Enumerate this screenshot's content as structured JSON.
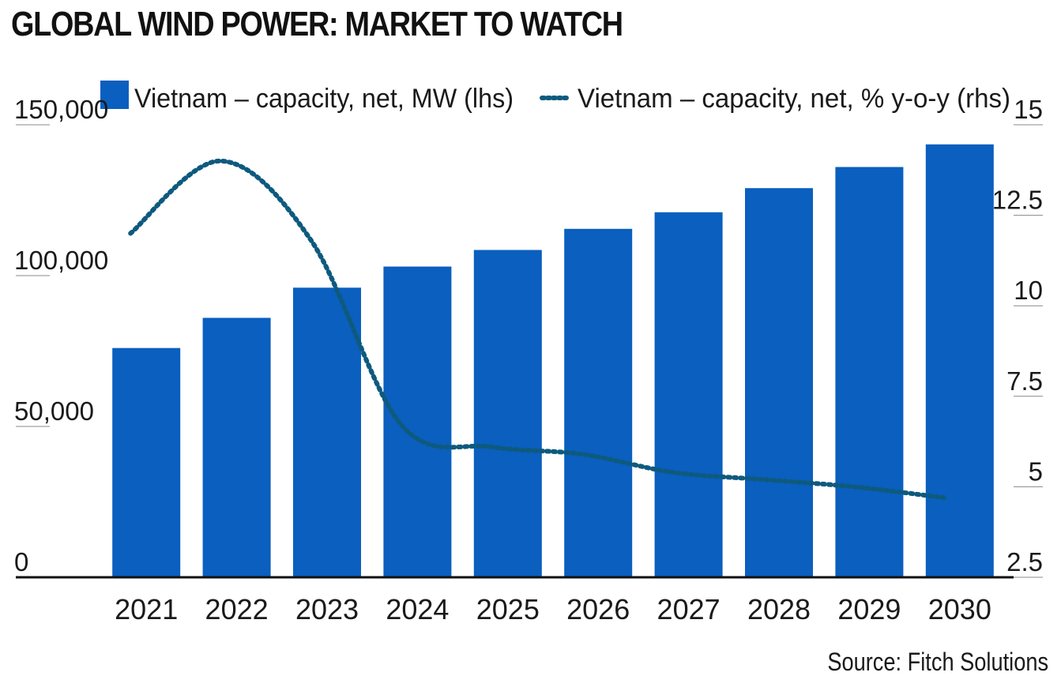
{
  "title": "GLOBAL WIND POWER: MARKET TO WATCH",
  "source": "Source: Fitch Solutions",
  "chart_data": {
    "type": "bar",
    "categories": [
      "2021",
      "2022",
      "2023",
      "2024",
      "2025",
      "2026",
      "2027",
      "2028",
      "2029",
      "2030"
    ],
    "series": [
      {
        "name": "Vietnam – capacity, net, MW (lhs)",
        "type": "bar",
        "axis": "left",
        "color": "#0a5fbf",
        "values": [
          76000,
          86000,
          96000,
          103000,
          108500,
          115500,
          121000,
          129000,
          136000,
          143500
        ]
      },
      {
        "name": "Vietnam – capacity, net, % y-o-y (rhs)",
        "type": "line",
        "style": "dotted",
        "axis": "right",
        "color": "#0e5a7e",
        "values": [
          12,
          14,
          11.8,
          6.7,
          6.1,
          5.9,
          5.4,
          5.2,
          5.0,
          4.7
        ]
      }
    ],
    "left_axis": {
      "ticks": [
        "0",
        "50,000",
        "100,000",
        "150,000"
      ],
      "tick_values": [
        0,
        50000,
        100000,
        150000
      ],
      "ylim": [
        0,
        150000
      ]
    },
    "right_axis": {
      "ticks": [
        "2.5",
        "5",
        "7.5",
        "10",
        "12.5",
        "15"
      ],
      "tick_values": [
        2.5,
        5,
        7.5,
        10,
        12.5,
        15
      ],
      "ylim": [
        2.5,
        15
      ]
    },
    "legend_position": "top",
    "grid": false
  }
}
